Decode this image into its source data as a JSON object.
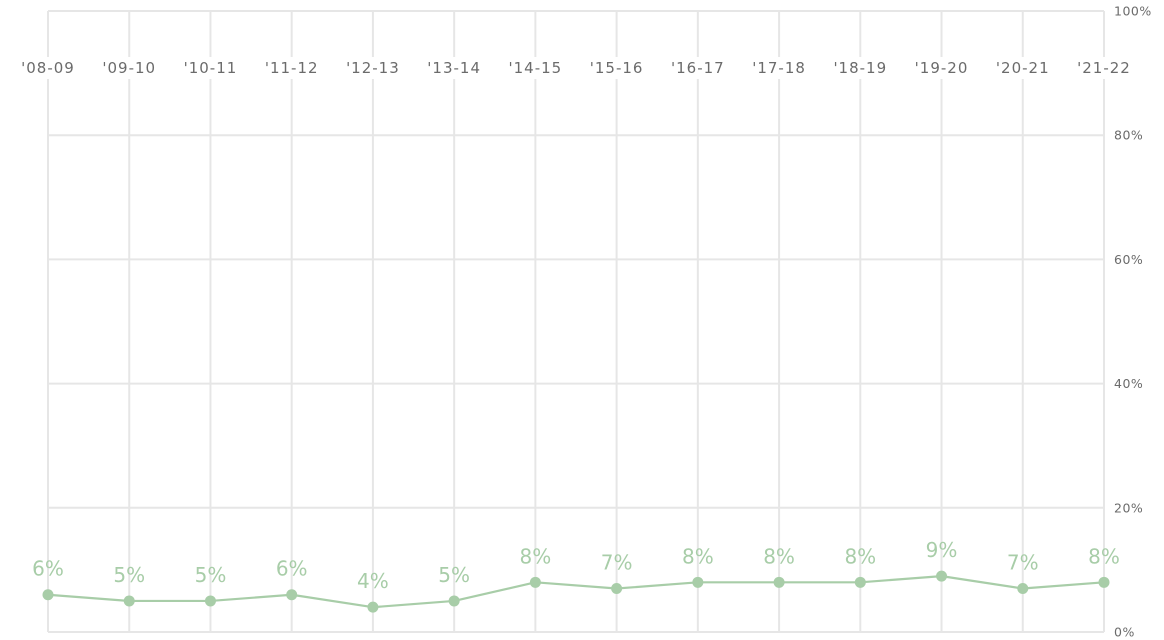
{
  "chart_data": {
    "type": "line",
    "categories": [
      "'08-09",
      "'09-10",
      "'10-11",
      "'11-12",
      "'12-13",
      "'13-14",
      "'14-15",
      "'15-16",
      "'16-17",
      "'17-18",
      "'18-19",
      "'19-20",
      "'20-21",
      "'21-22"
    ],
    "values": [
      6,
      5,
      5,
      6,
      4,
      5,
      8,
      7,
      8,
      8,
      8,
      9,
      7,
      8
    ],
    "value_labels": [
      "6%",
      "5%",
      "5%",
      "6%",
      "4%",
      "5%",
      "8%",
      "7%",
      "8%",
      "8%",
      "8%",
      "9%",
      "7%",
      "8%"
    ],
    "y_ticks": [
      {
        "value": 0,
        "label": "0%"
      },
      {
        "value": 20,
        "label": "20%"
      },
      {
        "value": 40,
        "label": "40%"
      },
      {
        "value": 60,
        "label": "60%"
      },
      {
        "value": 80,
        "label": "80%"
      },
      {
        "value": 100,
        "label": "100%"
      }
    ],
    "ylim": [
      0,
      100
    ],
    "grid": true,
    "x_axis_position": "top",
    "y_axis_position": "right",
    "title": "",
    "xlabel": "",
    "ylabel": ""
  },
  "colors": {
    "series": "#a8cda8",
    "label": "#a8cda8",
    "grid": "#e6e6e6",
    "tick_text": "#6b6b6b"
  }
}
